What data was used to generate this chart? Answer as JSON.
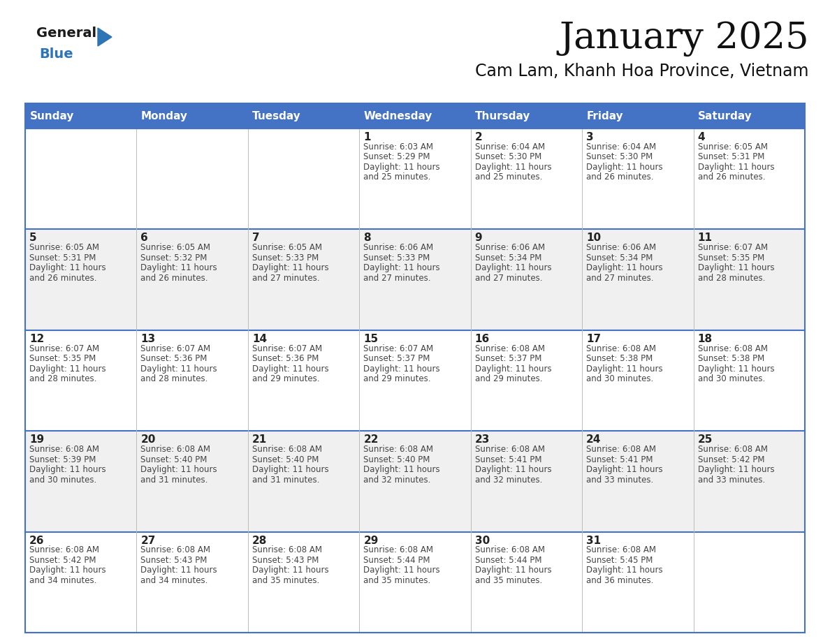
{
  "title": "January 2025",
  "subtitle": "Cam Lam, Khanh Hoa Province, Vietnam",
  "header_bg_color": "#4472C4",
  "header_text_color": "#FFFFFF",
  "border_color": "#4472C4",
  "text_color": "#444444",
  "day_number_color": "#222222",
  "weekdays": [
    "Sunday",
    "Monday",
    "Tuesday",
    "Wednesday",
    "Thursday",
    "Friday",
    "Saturday"
  ],
  "days": [
    {
      "day": 1,
      "col": 3,
      "row": 0,
      "sunrise": "6:03 AM",
      "sunset": "5:29 PM",
      "daylight_h": "11 hours",
      "daylight_m": "25 minutes."
    },
    {
      "day": 2,
      "col": 4,
      "row": 0,
      "sunrise": "6:04 AM",
      "sunset": "5:30 PM",
      "daylight_h": "11 hours",
      "daylight_m": "25 minutes."
    },
    {
      "day": 3,
      "col": 5,
      "row": 0,
      "sunrise": "6:04 AM",
      "sunset": "5:30 PM",
      "daylight_h": "11 hours",
      "daylight_m": "26 minutes."
    },
    {
      "day": 4,
      "col": 6,
      "row": 0,
      "sunrise": "6:05 AM",
      "sunset": "5:31 PM",
      "daylight_h": "11 hours",
      "daylight_m": "26 minutes."
    },
    {
      "day": 5,
      "col": 0,
      "row": 1,
      "sunrise": "6:05 AM",
      "sunset": "5:31 PM",
      "daylight_h": "11 hours",
      "daylight_m": "26 minutes."
    },
    {
      "day": 6,
      "col": 1,
      "row": 1,
      "sunrise": "6:05 AM",
      "sunset": "5:32 PM",
      "daylight_h": "11 hours",
      "daylight_m": "26 minutes."
    },
    {
      "day": 7,
      "col": 2,
      "row": 1,
      "sunrise": "6:05 AM",
      "sunset": "5:33 PM",
      "daylight_h": "11 hours",
      "daylight_m": "27 minutes."
    },
    {
      "day": 8,
      "col": 3,
      "row": 1,
      "sunrise": "6:06 AM",
      "sunset": "5:33 PM",
      "daylight_h": "11 hours",
      "daylight_m": "27 minutes."
    },
    {
      "day": 9,
      "col": 4,
      "row": 1,
      "sunrise": "6:06 AM",
      "sunset": "5:34 PM",
      "daylight_h": "11 hours",
      "daylight_m": "27 minutes."
    },
    {
      "day": 10,
      "col": 5,
      "row": 1,
      "sunrise": "6:06 AM",
      "sunset": "5:34 PM",
      "daylight_h": "11 hours",
      "daylight_m": "27 minutes."
    },
    {
      "day": 11,
      "col": 6,
      "row": 1,
      "sunrise": "6:07 AM",
      "sunset": "5:35 PM",
      "daylight_h": "11 hours",
      "daylight_m": "28 minutes."
    },
    {
      "day": 12,
      "col": 0,
      "row": 2,
      "sunrise": "6:07 AM",
      "sunset": "5:35 PM",
      "daylight_h": "11 hours",
      "daylight_m": "28 minutes."
    },
    {
      "day": 13,
      "col": 1,
      "row": 2,
      "sunrise": "6:07 AM",
      "sunset": "5:36 PM",
      "daylight_h": "11 hours",
      "daylight_m": "28 minutes."
    },
    {
      "day": 14,
      "col": 2,
      "row": 2,
      "sunrise": "6:07 AM",
      "sunset": "5:36 PM",
      "daylight_h": "11 hours",
      "daylight_m": "29 minutes."
    },
    {
      "day": 15,
      "col": 3,
      "row": 2,
      "sunrise": "6:07 AM",
      "sunset": "5:37 PM",
      "daylight_h": "11 hours",
      "daylight_m": "29 minutes."
    },
    {
      "day": 16,
      "col": 4,
      "row": 2,
      "sunrise": "6:08 AM",
      "sunset": "5:37 PM",
      "daylight_h": "11 hours",
      "daylight_m": "29 minutes."
    },
    {
      "day": 17,
      "col": 5,
      "row": 2,
      "sunrise": "6:08 AM",
      "sunset": "5:38 PM",
      "daylight_h": "11 hours",
      "daylight_m": "30 minutes."
    },
    {
      "day": 18,
      "col": 6,
      "row": 2,
      "sunrise": "6:08 AM",
      "sunset": "5:38 PM",
      "daylight_h": "11 hours",
      "daylight_m": "30 minutes."
    },
    {
      "day": 19,
      "col": 0,
      "row": 3,
      "sunrise": "6:08 AM",
      "sunset": "5:39 PM",
      "daylight_h": "11 hours",
      "daylight_m": "30 minutes."
    },
    {
      "day": 20,
      "col": 1,
      "row": 3,
      "sunrise": "6:08 AM",
      "sunset": "5:40 PM",
      "daylight_h": "11 hours",
      "daylight_m": "31 minutes."
    },
    {
      "day": 21,
      "col": 2,
      "row": 3,
      "sunrise": "6:08 AM",
      "sunset": "5:40 PM",
      "daylight_h": "11 hours",
      "daylight_m": "31 minutes."
    },
    {
      "day": 22,
      "col": 3,
      "row": 3,
      "sunrise": "6:08 AM",
      "sunset": "5:40 PM",
      "daylight_h": "11 hours",
      "daylight_m": "32 minutes."
    },
    {
      "day": 23,
      "col": 4,
      "row": 3,
      "sunrise": "6:08 AM",
      "sunset": "5:41 PM",
      "daylight_h": "11 hours",
      "daylight_m": "32 minutes."
    },
    {
      "day": 24,
      "col": 5,
      "row": 3,
      "sunrise": "6:08 AM",
      "sunset": "5:41 PM",
      "daylight_h": "11 hours",
      "daylight_m": "33 minutes."
    },
    {
      "day": 25,
      "col": 6,
      "row": 3,
      "sunrise": "6:08 AM",
      "sunset": "5:42 PM",
      "daylight_h": "11 hours",
      "daylight_m": "33 minutes."
    },
    {
      "day": 26,
      "col": 0,
      "row": 4,
      "sunrise": "6:08 AM",
      "sunset": "5:42 PM",
      "daylight_h": "11 hours",
      "daylight_m": "34 minutes."
    },
    {
      "day": 27,
      "col": 1,
      "row": 4,
      "sunrise": "6:08 AM",
      "sunset": "5:43 PM",
      "daylight_h": "11 hours",
      "daylight_m": "34 minutes."
    },
    {
      "day": 28,
      "col": 2,
      "row": 4,
      "sunrise": "6:08 AM",
      "sunset": "5:43 PM",
      "daylight_h": "11 hours",
      "daylight_m": "35 minutes."
    },
    {
      "day": 29,
      "col": 3,
      "row": 4,
      "sunrise": "6:08 AM",
      "sunset": "5:44 PM",
      "daylight_h": "11 hours",
      "daylight_m": "35 minutes."
    },
    {
      "day": 30,
      "col": 4,
      "row": 4,
      "sunrise": "6:08 AM",
      "sunset": "5:44 PM",
      "daylight_h": "11 hours",
      "daylight_m": "35 minutes."
    },
    {
      "day": 31,
      "col": 5,
      "row": 4,
      "sunrise": "6:08 AM",
      "sunset": "5:45 PM",
      "daylight_h": "11 hours",
      "daylight_m": "36 minutes."
    }
  ],
  "logo_general_color": "#1a1a1a",
  "logo_blue_color": "#2E75B6",
  "logo_triangle_color": "#2E75B6",
  "row_colors": [
    "#FFFFFF",
    "#F0F0F0",
    "#FFFFFF",
    "#F0F0F0",
    "#FFFFFF"
  ]
}
